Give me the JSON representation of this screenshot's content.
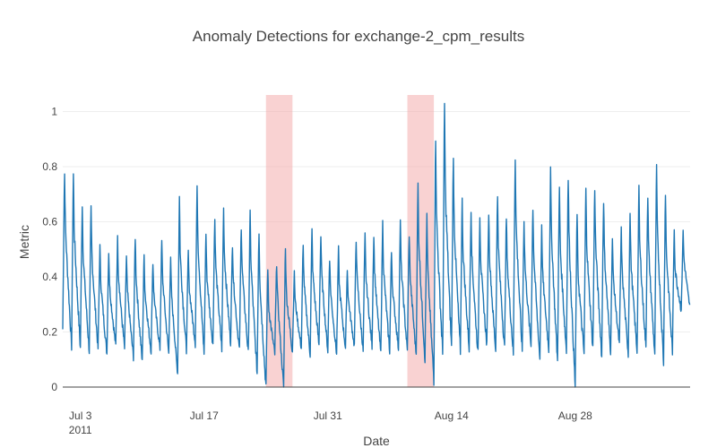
{
  "chart_data": {
    "type": "line",
    "title": "Anomaly Detections for exchange-2_cpm_results",
    "xlabel": "Date",
    "ylabel": "Metric",
    "x_start": "2011-07-01",
    "x_end": "2011-09-10",
    "xlim": [
      "2011-07-01",
      "2011-09-10"
    ],
    "ylim": [
      0,
      1.06
    ],
    "grid": true,
    "legend": "none",
    "x_ticks": [
      {
        "date": "2011-07-03",
        "label": "Jul 3",
        "sublabel": "2011"
      },
      {
        "date": "2011-07-17",
        "label": "Jul 17",
        "sublabel": ""
      },
      {
        "date": "2011-07-31",
        "label": "Jul 31",
        "sublabel": ""
      },
      {
        "date": "2011-08-14",
        "label": "Aug 14",
        "sublabel": ""
      },
      {
        "date": "2011-08-28",
        "label": "Aug 28",
        "sublabel": ""
      }
    ],
    "y_ticks": [
      {
        "value": 0,
        "label": "0"
      },
      {
        "value": 0.2,
        "label": "0.2"
      },
      {
        "value": 0.4,
        "label": "0.4"
      },
      {
        "value": 0.6,
        "label": "0.6"
      },
      {
        "value": 0.8,
        "label": "0.8"
      },
      {
        "value": 1,
        "label": "1"
      }
    ],
    "anomaly_windows": [
      {
        "start": "2011-07-24",
        "end": "2011-07-27"
      },
      {
        "start": "2011-08-09",
        "end": "2011-08-12"
      }
    ],
    "series": [
      {
        "color": "#1f77b4",
        "peaks": [
          0.79,
          0.79,
          0.68,
          0.66,
          0.52,
          0.5,
          0.55,
          0.48,
          0.56,
          0.49,
          0.46,
          0.54,
          0.47,
          0.71,
          0.5,
          0.73,
          0.57,
          0.62,
          0.66,
          0.53,
          0.6,
          0.64,
          0.58,
          0.45,
          0.46,
          0.53,
          0.42,
          0.52,
          0.58,
          0.56,
          0.48,
          0.51,
          0.43,
          0.55,
          0.56,
          0.56,
          0.61,
          0.5,
          0.61,
          0.57,
          0.75,
          0.63,
          0.94,
          1.05,
          0.84,
          0.69,
          0.66,
          0.64,
          0.65,
          0.71,
          0.63,
          0.86,
          0.62,
          0.67,
          0.59,
          0.8,
          0.74,
          0.78,
          0.66,
          0.73,
          0.74,
          0.7,
          0.55,
          0.58,
          0.64,
          0.73,
          0.71,
          0.81,
          0.73,
          0.59,
          0.57
        ],
        "troughs": [
          0.21,
          0.15,
          0.14,
          0.13,
          0.14,
          0.12,
          0.15,
          0.14,
          0.11,
          0.09,
          0.13,
          0.14,
          0.12,
          0.05,
          0.13,
          0.16,
          0.12,
          0.15,
          0.14,
          0.16,
          0.13,
          0.12,
          0.05,
          0.0,
          0.12,
          0.0,
          0.13,
          0.14,
          0.12,
          0.15,
          0.13,
          0.12,
          0.14,
          0.15,
          0.13,
          0.15,
          0.12,
          0.13,
          0.14,
          0.13,
          0.12,
          0.1,
          0.03,
          0.12,
          0.14,
          0.13,
          0.14,
          0.12,
          0.15,
          0.13,
          0.14,
          0.12,
          0.13,
          0.15,
          0.1,
          0.14,
          0.09,
          0.13,
          0.0,
          0.12,
          0.14,
          0.11,
          0.13,
          0.15,
          0.12,
          0.13,
          0.14,
          0.12,
          0.09,
          0.13,
          0.28
        ]
      }
    ]
  }
}
